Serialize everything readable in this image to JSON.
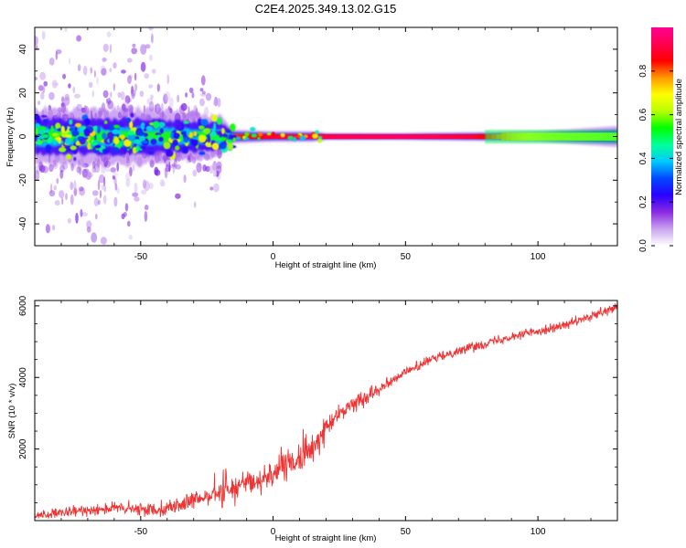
{
  "figure": {
    "title": "C2E4.2025.349.13.02.G15"
  },
  "chart_data": [
    {
      "type": "heatmap",
      "title": "C2E4.2025.349.13.02.G15",
      "xlabel": "Height of straight line (km)",
      "ylabel": "Frequency (Hz)",
      "xlim": [
        -90,
        130
      ],
      "ylim": [
        -50,
        50
      ],
      "xticks": [
        -50,
        0,
        50,
        100
      ],
      "xtick_labels": [
        "-50",
        "0",
        "50",
        "100"
      ],
      "yticks": [
        -40,
        -20,
        0,
        20,
        40
      ],
      "ytick_labels": [
        "-40",
        "-20",
        "0",
        "20",
        "40"
      ],
      "colorbar": {
        "label": "Normalized spectral amplitude",
        "range": [
          0,
          1
        ],
        "ticks": [
          0.0,
          0.2,
          0.4,
          0.6,
          0.8
        ],
        "tick_labels": [
          "0.0",
          "0.2",
          "0.4",
          "0.6",
          "0.8"
        ],
        "colormap": [
          "#ffffff",
          "#c9a3ef",
          "#8a2be2",
          "#2a00ff",
          "#0047ff",
          "#00c8ff",
          "#00ff9a",
          "#00ff00",
          "#b8ff00",
          "#ffff00",
          "#ff9900",
          "#ff0000",
          "#ff0050",
          "#ff0090"
        ]
      },
      "description_series": [
        {
          "name": "main_band_halfwidth_hz",
          "x": [
            -90,
            -50,
            -20,
            -15,
            0,
            15,
            20,
            50,
            100,
            130
          ],
          "values": [
            8,
            8,
            6,
            2,
            1.5,
            1.5,
            1,
            1,
            1.5,
            3
          ]
        }
      ]
    },
    {
      "type": "line",
      "xlabel": "Height of straight line (km)",
      "ylabel": "SNR (10 * v/v)",
      "xlim": [
        -90,
        130
      ],
      "ylim": [
        0,
        6150
      ],
      "xticks": [
        -50,
        0,
        50,
        100
      ],
      "xtick_labels": [
        "-50",
        "0",
        "50",
        "100"
      ],
      "yticks": [
        2000,
        4000,
        6000
      ],
      "ytick_labels": [
        "2000",
        "4000",
        "6000"
      ],
      "series": [
        {
          "name": "SNR",
          "color": "#ee3333",
          "x": [
            -90,
            -80,
            -70,
            -60,
            -50,
            -40,
            -30,
            -20,
            -10,
            0,
            5,
            10,
            15,
            20,
            25,
            30,
            40,
            50,
            60,
            70,
            80,
            90,
            100,
            110,
            120,
            128,
            130
          ],
          "values": [
            150,
            200,
            300,
            350,
            300,
            350,
            550,
            800,
            1000,
            1300,
            1550,
            1700,
            2000,
            2600,
            3000,
            3250,
            3700,
            4150,
            4500,
            4750,
            4950,
            5150,
            5300,
            5450,
            5700,
            5900,
            5950
          ]
        }
      ]
    }
  ]
}
